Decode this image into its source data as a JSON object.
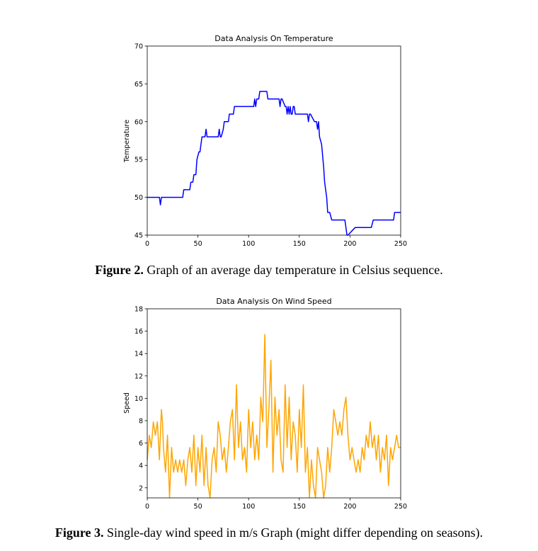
{
  "figures": [
    {
      "caption_label": "Figure 2.",
      "caption_text": " Graph of an average day temperature in Celsius sequence.",
      "chart_data": {
        "type": "line",
        "title": "Data Analysis On Temperature",
        "xlabel": "",
        "ylabel": "Temperature",
        "xlim": [
          0,
          250
        ],
        "ylim": [
          45,
          70
        ],
        "xticks": [
          0,
          50,
          100,
          150,
          200,
          250
        ],
        "yticks": [
          45,
          50,
          55,
          60,
          65,
          70
        ],
        "color": "#0000ff",
        "series": [
          {
            "x": [
              0,
              12,
              13,
              14,
              35,
              36,
              42,
              43,
              45,
              46,
              48,
              49,
              51,
              52,
              53,
              54,
              57,
              58,
              59,
              60,
              70,
              71,
              72,
              73,
              75,
              76,
              77,
              78,
              80,
              81,
              85,
              86,
              95,
              96,
              105,
              106,
              107,
              108,
              110,
              111,
              118,
              119,
              120,
              121,
              130,
              131,
              132,
              133,
              136,
              137,
              138,
              139,
              140,
              141,
              142,
              143,
              144,
              145,
              146,
              150,
              151,
              158,
              159,
              160,
              161,
              165,
              166,
              167,
              168,
              169,
              170,
              172,
              174,
              175,
              176,
              177,
              178,
              180,
              182,
              183,
              185,
              186,
              195,
              196,
              197,
              198,
              205,
              206,
              220,
              221,
              223,
              224,
              243,
              244,
              250
            ],
            "y": [
              50,
              50,
              49,
              50,
              50,
              51,
              51,
              52,
              52,
              53,
              53,
              55,
              56,
              56,
              57,
              58,
              58,
              59,
              58,
              58,
              58,
              59,
              58,
              58,
              59,
              60,
              60,
              60,
              60,
              61,
              61,
              62,
              62,
              62,
              62,
              63,
              62,
              63,
              63,
              64,
              64,
              63,
              63,
              63,
              63,
              62,
              63,
              63,
              62,
              62,
              61,
              62,
              61,
              62,
              61,
              61,
              62,
              62,
              61,
              61,
              61,
              61,
              60,
              61,
              61,
              60,
              60,
              60,
              59,
              60,
              58,
              57,
              54,
              52,
              51,
              50,
              48,
              48,
              47,
              47,
              47,
              47,
              47,
              46,
              45,
              45,
              46,
              46,
              46,
              46,
              47,
              47,
              47,
              48,
              48
            ]
          }
        ]
      }
    },
    {
      "caption_label": "Figure 3.",
      "caption_text": " Single-day wind speed in m/s Graph (might differ depending on seasons).",
      "chart_data": {
        "type": "line",
        "title": "Data Analysis On Wind Speed",
        "xlabel": "",
        "ylabel": "Speed",
        "xlim": [
          0,
          250
        ],
        "ylim": [
          1.1,
          18
        ],
        "xticks": [
          0,
          50,
          100,
          150,
          200,
          250
        ],
        "yticks": [
          2,
          4,
          6,
          8,
          10,
          12,
          14,
          16,
          18
        ],
        "color": "#ffa500",
        "series": [
          {
            "x": [
              0,
              2,
              4,
              6,
              8,
              10,
              12,
              14,
              15,
              16,
              18,
              20,
              22,
              24,
              26,
              28,
              30,
              32,
              34,
              36,
              38,
              40,
              42,
              44,
              46,
              48,
              50,
              52,
              54,
              56,
              58,
              60,
              62,
              64,
              66,
              68,
              70,
              72,
              74,
              76,
              78,
              80,
              82,
              84,
              86,
              88,
              90,
              92,
              94,
              96,
              98,
              100,
              102,
              104,
              106,
              108,
              110,
              112,
              114,
              116,
              118,
              120,
              122,
              124,
              126,
              128,
              130,
              132,
              134,
              136,
              138,
              140,
              142,
              144,
              146,
              148,
              150,
              152,
              154,
              156,
              158,
              160,
              162,
              164,
              166,
              168,
              170,
              172,
              174,
              176,
              178,
              180,
              182,
              184,
              186,
              188,
              190,
              192,
              194,
              196,
              198,
              200,
              202,
              204,
              206,
              208,
              210,
              212,
              214,
              216,
              218,
              220,
              222,
              224,
              226,
              228,
              230,
              232,
              234,
              236,
              238,
              240,
              242,
              244,
              246,
              248,
              250
            ],
            "y": [
              4.5,
              6.7,
              5.6,
              7.9,
              6.7,
              7.9,
              4.5,
              9.0,
              7.9,
              5.6,
              3.4,
              6.7,
              1.1,
              5.6,
              3.4,
              4.5,
              3.4,
              4.5,
              3.4,
              4.5,
              2.2,
              4.5,
              5.6,
              3.4,
              6.7,
              2.2,
              5.6,
              3.4,
              6.7,
              2.2,
              5.6,
              2.2,
              1.1,
              4.5,
              5.6,
              3.4,
              7.9,
              6.7,
              4.5,
              5.6,
              3.4,
              5.6,
              7.9,
              9.0,
              4.5,
              11.2,
              5.6,
              7.9,
              4.5,
              5.6,
              3.4,
              9.0,
              5.6,
              7.9,
              4.5,
              6.7,
              4.5,
              10.1,
              7.9,
              15.7,
              5.6,
              9.0,
              13.4,
              3.4,
              10.1,
              6.7,
              9.0,
              4.5,
              3.4,
              11.2,
              5.6,
              10.1,
              4.5,
              7.9,
              6.7,
              3.4,
              9.0,
              5.6,
              11.2,
              3.4,
              5.6,
              1.1,
              4.5,
              2.2,
              1.1,
              5.6,
              4.5,
              3.4,
              1.1,
              2.2,
              5.6,
              3.4,
              5.6,
              9.0,
              7.9,
              6.7,
              7.9,
              6.7,
              9.0,
              10.1,
              6.7,
              4.5,
              5.6,
              4.5,
              3.4,
              4.5,
              3.4,
              5.6,
              4.5,
              6.7,
              5.6,
              7.9,
              5.6,
              6.7,
              4.5,
              6.7,
              3.4,
              5.6,
              4.5,
              6.7,
              2.2,
              5.6,
              4.5,
              5.6,
              6.7,
              5.6,
              5.6
            ]
          }
        ]
      }
    }
  ]
}
